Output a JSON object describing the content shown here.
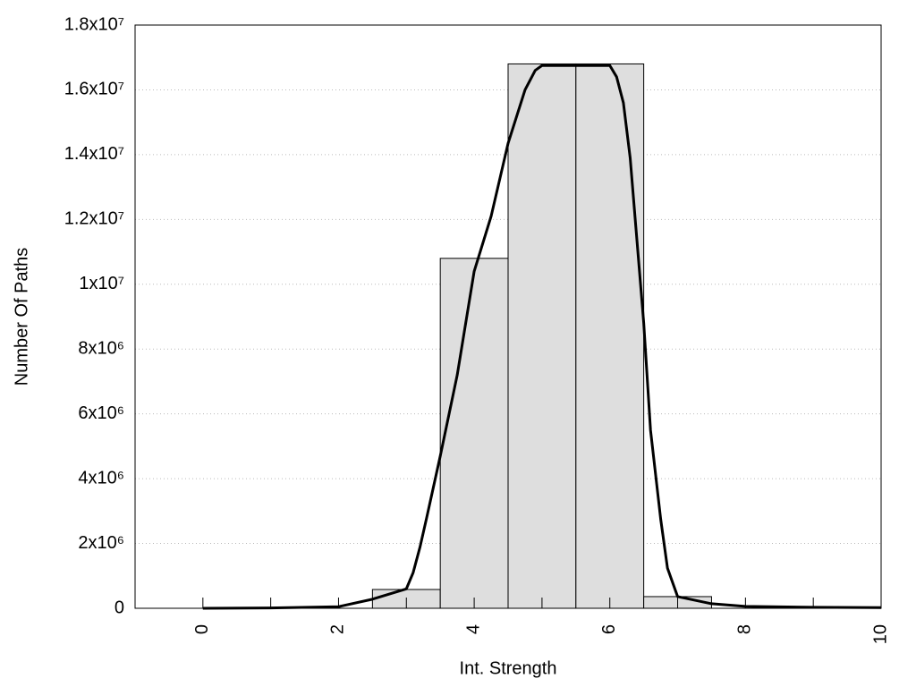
{
  "chart_data": {
    "type": "histogram",
    "xlabel": "Int. Strength",
    "ylabel": "Number Of Paths",
    "bins": [
      2.5,
      3.5,
      4.5,
      5.5,
      6.5,
      7.5
    ],
    "values": [
      580000,
      10800000,
      16800000,
      16800000,
      360000
    ],
    "color": "#dedede",
    "curve": {
      "type": "line",
      "color": "#000000",
      "x": [
        0,
        1,
        2,
        2.5,
        3,
        3.1,
        3.2,
        3.3,
        3.5,
        3.75,
        4,
        4.25,
        4.5,
        4.75,
        4.9,
        5,
        6,
        6.1,
        6.2,
        6.3,
        6.5,
        6.6,
        6.75,
        6.85,
        7,
        7.5,
        8,
        9,
        10
      ],
      "values": [
        0,
        10000,
        50000,
        280000,
        600000,
        1100000,
        1880000,
        2800000,
        4700000,
        7200000,
        10400000,
        12100000,
        14350000,
        16000000,
        16600000,
        16750000,
        16750000,
        16400000,
        15600000,
        13900000,
        8800000,
        5500000,
        2750000,
        1240000,
        360000,
        140000,
        60000,
        30000,
        20000
      ]
    },
    "xlim": [
      -1,
      10
    ],
    "xticks": [
      0,
      2,
      4,
      6,
      8,
      10
    ],
    "xminorticks": [
      1,
      3,
      5,
      7,
      9
    ],
    "ylim": [
      0,
      18000000
    ],
    "yticks": [
      0,
      {
        "value": 2000000,
        "label": "2x10⁶"
      },
      {
        "value": 4000000,
        "label": "4x10⁶"
      },
      {
        "value": 6000000,
        "label": "6x10⁶"
      },
      {
        "value": 8000000,
        "label": "8x10⁶"
      },
      {
        "value": 10000000,
        "label": "1x10⁷"
      },
      {
        "value": 12000000,
        "label": "1.2x10⁷"
      },
      {
        "value": 14000000,
        "label": "1.4x10⁷"
      },
      {
        "value": 16000000,
        "label": "1.6x10⁷"
      },
      {
        "value": 18000000,
        "label": "1.8x10⁷"
      }
    ],
    "grid": true
  }
}
